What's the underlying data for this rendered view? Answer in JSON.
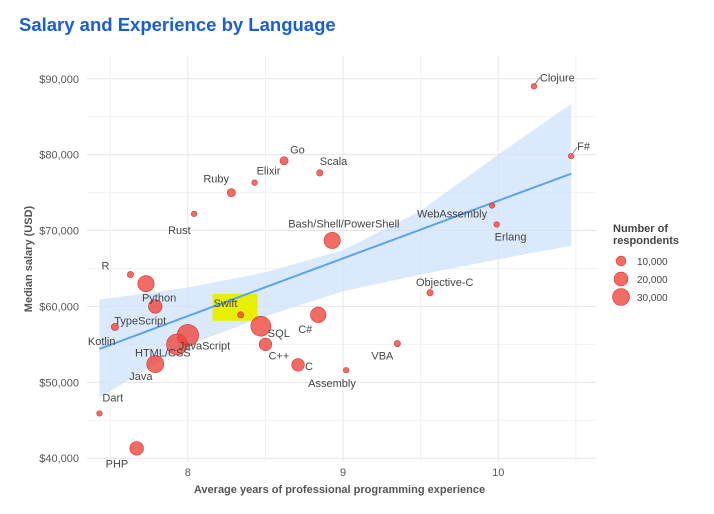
{
  "chart_data": {
    "type": "scatter",
    "title": "Salary and Experience by Language",
    "xlabel": "Average years of professional programming experience",
    "ylabel": "Median salary (USD)",
    "xlim": [
      7.35,
      10.63
    ],
    "ylim": [
      39500,
      93000
    ],
    "x_ticks": [
      8,
      9,
      10
    ],
    "y_ticks": [
      40000,
      50000,
      60000,
      70000,
      80000,
      90000
    ],
    "y_tick_labels": [
      "$40,000",
      "$50,000",
      "$60,000",
      "$70,000",
      "$80,000",
      "$90,000"
    ],
    "grid": true,
    "colors": {
      "points": "#f0413a",
      "trend_line": "#5aa3ee",
      "confidence_band": "#cfe2fb",
      "highlight": "#e8ef00",
      "title": "#1a5fd0"
    },
    "trend": {
      "x": [
        7.43,
        10.47
      ],
      "y": [
        54400,
        77500
      ]
    },
    "confidence_band": {
      "x": [
        7.43,
        8.0,
        8.5,
        9.0,
        9.5,
        10.0,
        10.47
      ],
      "upper": [
        60900,
        62500,
        64500,
        67400,
        72600,
        80000,
        86700
      ],
      "lower": [
        48000,
        54900,
        58700,
        62000,
        64200,
        66200,
        68000
      ]
    },
    "points": [
      {
        "label": "Clojure",
        "x": 10.23,
        "y": 89000,
        "respondents": 1000
      },
      {
        "label": "F#",
        "x": 10.47,
        "y": 79800,
        "respondents": 1000
      },
      {
        "label": "Go",
        "x": 8.62,
        "y": 79200,
        "respondents": 5000
      },
      {
        "label": "Scala",
        "x": 8.85,
        "y": 77600,
        "respondents": 3000
      },
      {
        "label": "Elixir",
        "x": 8.43,
        "y": 76300,
        "respondents": 1000
      },
      {
        "label": "Ruby",
        "x": 8.28,
        "y": 75000,
        "respondents": 5000
      },
      {
        "label": "Rust",
        "x": 8.04,
        "y": 72200,
        "respondents": 2000
      },
      {
        "label": "WebAssembly",
        "x": 9.96,
        "y": 73300,
        "respondents": 500
      },
      {
        "label": "Erlang",
        "x": 9.99,
        "y": 70800,
        "respondents": 500
      },
      {
        "label": "Bash/Shell/PowerShell",
        "x": 8.93,
        "y": 68700,
        "respondents": 20000
      },
      {
        "label": "R",
        "x": 7.63,
        "y": 64200,
        "respondents": 3000
      },
      {
        "label": "Python",
        "x": 7.73,
        "y": 63000,
        "respondents": 20000
      },
      {
        "label": "Objective-C",
        "x": 9.56,
        "y": 61800,
        "respondents": 3000
      },
      {
        "label": "TypeScript",
        "x": 7.79,
        "y": 60000,
        "respondents": 14000
      },
      {
        "label": "Swift",
        "x": 8.34,
        "y": 58900,
        "respondents": 3000
      },
      {
        "label": "C#",
        "x": 8.84,
        "y": 58900,
        "respondents": 18000
      },
      {
        "label": "JavaScript",
        "x": 8.0,
        "y": 56200,
        "respondents": 35000
      },
      {
        "label": "SQL",
        "x": 8.47,
        "y": 57400,
        "respondents": 30000
      },
      {
        "label": "Kotlin",
        "x": 7.53,
        "y": 57300,
        "respondents": 4000
      },
      {
        "label": "HTML/CSS",
        "x": 7.93,
        "y": 55000,
        "respondents": 33000
      },
      {
        "label": "C++",
        "x": 8.5,
        "y": 55000,
        "respondents": 12000
      },
      {
        "label": "VBA",
        "x": 9.35,
        "y": 55100,
        "respondents": 3000
      },
      {
        "label": "C",
        "x": 8.71,
        "y": 52300,
        "respondents": 12000
      },
      {
        "label": "Java",
        "x": 7.79,
        "y": 52400,
        "respondents": 22000
      },
      {
        "label": "Assembly",
        "x": 9.02,
        "y": 51600,
        "respondents": 2000
      },
      {
        "label": "Dart",
        "x": 7.43,
        "y": 45900,
        "respondents": 1000
      },
      {
        "label": "PHP",
        "x": 7.67,
        "y": 41300,
        "respondents": 14000
      }
    ],
    "legend": {
      "title": "Number of respondents",
      "placement": "right",
      "entries": [
        {
          "label": "10,000",
          "value": 10000
        },
        {
          "label": "20,000",
          "value": 20000
        },
        {
          "label": "30,000",
          "value": 30000
        }
      ]
    },
    "highlight_label": "Swift"
  }
}
